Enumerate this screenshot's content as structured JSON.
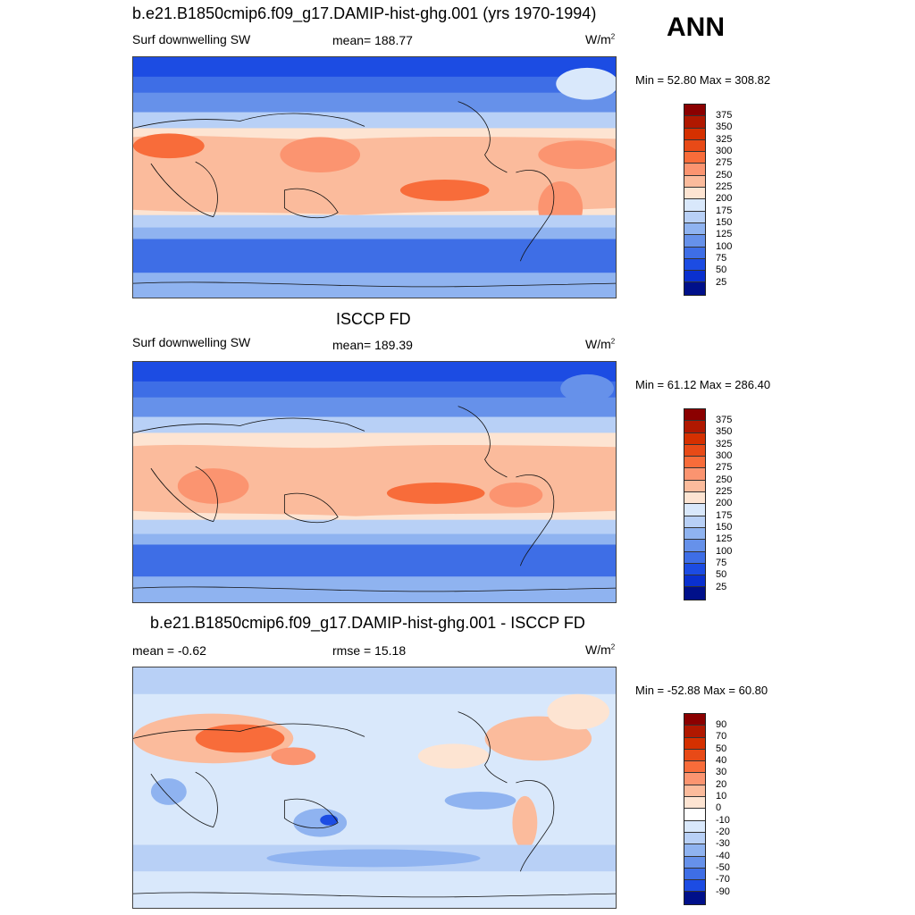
{
  "season": "ANN",
  "palettes": {
    "abs": [
      "#8b0000",
      "#b01800",
      "#d53000",
      "#e84a17",
      "#f86c3a",
      "#fb9470",
      "#fbbb9c",
      "#fde4d2",
      "#d9e8fb",
      "#b8d0f6",
      "#8fb3f0",
      "#6691ea",
      "#3e6ee6",
      "#1c4ce3",
      "#0a30cf",
      "#001cae",
      "#00108a"
    ],
    "diff": [
      "#8b0000",
      "#b01800",
      "#d53000",
      "#e84a17",
      "#f86c3a",
      "#fb9470",
      "#fbbb9c",
      "#fde4d2",
      "#ffffff",
      "#d9e8fb",
      "#b8d0f6",
      "#8fb3f0",
      "#6691ea",
      "#3e6ee6",
      "#1c4ce3",
      "#0a30cf",
      "#001cae",
      "#00108a"
    ]
  },
  "colorbar_labels": {
    "abs": [
      "375",
      "350",
      "325",
      "300",
      "275",
      "250",
      "225",
      "200",
      "175",
      "150",
      "125",
      "100",
      "75",
      "50",
      "25"
    ],
    "diff": [
      "90",
      "70",
      "50",
      "40",
      "30",
      "20",
      "10",
      "0",
      "-10",
      "-20",
      "-30",
      "-40",
      "-50",
      "-70",
      "-90"
    ]
  },
  "panels": [
    {
      "title": "b.e21.B1850cmip6.f09_g17.DAMIP-hist-ghg.001 (yrs 1970-1994)",
      "left": "Surf downwelling SW",
      "center": "mean= 188.77",
      "units": "W/m",
      "units_sup": "2",
      "minmax": "Min =  52.80 Max = 308.82",
      "stats": {
        "mean": 188.77,
        "min": 52.8,
        "max": 308.82
      },
      "palette": "abs"
    },
    {
      "title": "ISCCP FD",
      "left": "Surf downwelling SW",
      "center": "mean= 189.39",
      "units": "W/m",
      "units_sup": "2",
      "minmax": "Min =  61.12 Max = 286.40",
      "stats": {
        "mean": 189.39,
        "min": 61.12,
        "max": 286.4
      },
      "palette": "abs"
    },
    {
      "title": "b.e21.B1850cmip6.f09_g17.DAMIP-hist-ghg.001 - ISCCP FD",
      "left": "mean =  -0.62",
      "center": "rmse =  15.18",
      "units": "W/m",
      "units_sup": "2",
      "minmax": "Min = -52.88 Max =  60.80",
      "stats": {
        "mean": -0.62,
        "rmse": 15.18,
        "min": -52.88,
        "max": 60.8
      },
      "palette": "diff"
    }
  ]
}
